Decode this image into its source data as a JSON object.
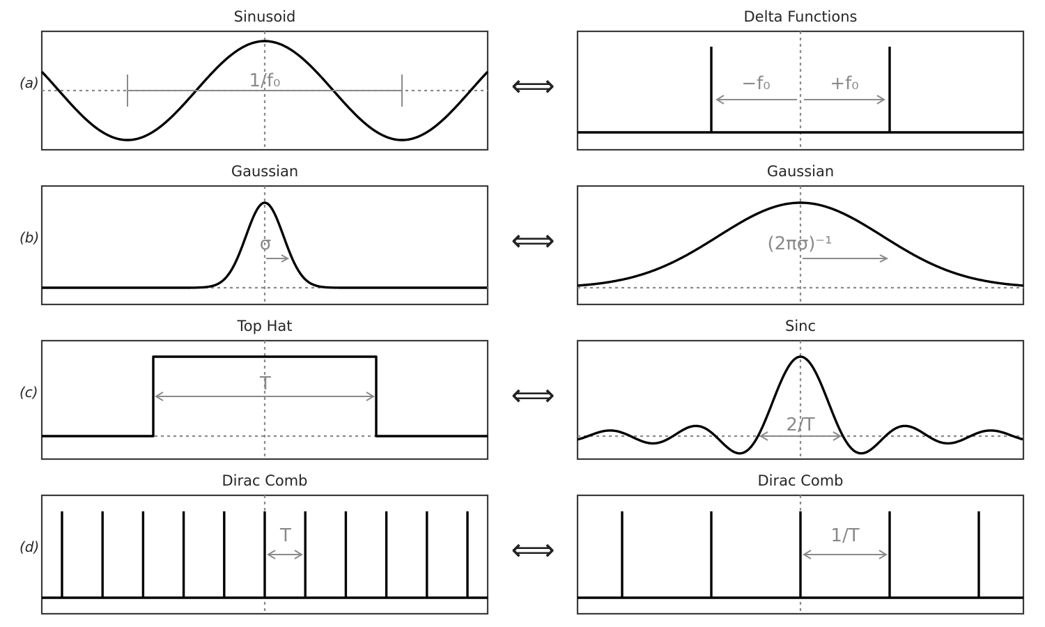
{
  "rows": [
    {
      "label": "(a)",
      "left": {
        "title": "Sinusoid",
        "function": "sinusoid",
        "annotation": "1/f₀"
      },
      "right": {
        "title": "Delta Functions",
        "function": "delta-pair",
        "annotation_left": "−f₀",
        "annotation_right": "+f₀"
      }
    },
    {
      "label": "(b)",
      "left": {
        "title": "Gaussian",
        "function": "gaussian-narrow",
        "annotation": "σ"
      },
      "right": {
        "title": "Gaussian",
        "function": "gaussian-wide",
        "annotation": "(2πσ)⁻¹"
      }
    },
    {
      "label": "(c)",
      "left": {
        "title": "Top Hat",
        "function": "top-hat",
        "annotation": "T"
      },
      "right": {
        "title": "Sinc",
        "function": "sinc",
        "annotation": "2/T"
      }
    },
    {
      "label": "(d)",
      "left": {
        "title": "Dirac Comb",
        "function": "comb-dense",
        "annotation": "T"
      },
      "right": {
        "title": "Dirac Comb",
        "function": "comb-sparse",
        "annotation": "1/T"
      }
    }
  ],
  "arrow_symbol": "⟺",
  "colors": {
    "curve": "#000000",
    "guide": "#8a8a8a",
    "frame": "#3a3a3a",
    "text": "#262626"
  }
}
